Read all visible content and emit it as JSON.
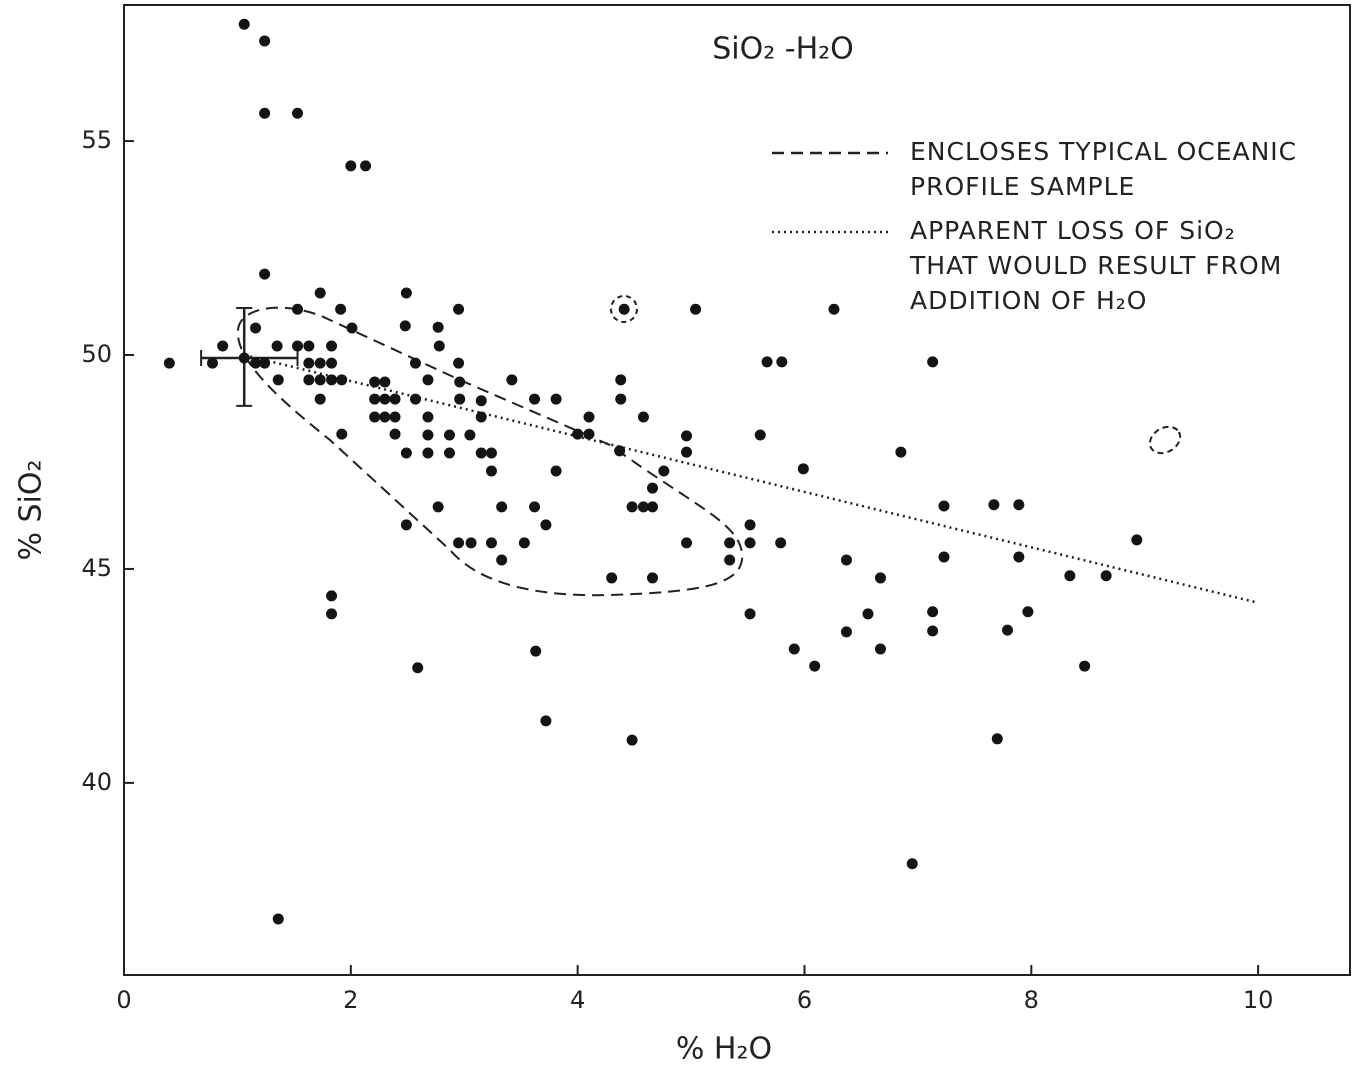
{
  "chart_data": {
    "type": "scatter",
    "title": "SiO₂ -H₂O",
    "x_label": "% H₂O",
    "y_label": "% SiO₂",
    "color": "#141414",
    "x": [
      1.06,
      1.24,
      1.24,
      1.53,
      2.0,
      2.13,
      1.24,
      1.73,
      2.49,
      1.53,
      1.91,
      2.95,
      4.41,
      5.04,
      6.26,
      1.16,
      2.01,
      2.48,
      2.77,
      0.87,
      1.35,
      1.53,
      1.63,
      1.83,
      2.78,
      0.4,
      0.78,
      1.06,
      1.16,
      1.24,
      1.63,
      1.73,
      1.83,
      2.57,
      2.95,
      5.67,
      5.8,
      7.13,
      1.63,
      1.73,
      1.83,
      1.92,
      1.36,
      2.21,
      2.3,
      2.68,
      2.96,
      3.42,
      4.38,
      1.73,
      2.21,
      2.3,
      2.39,
      2.57,
      2.96,
      3.15,
      3.62,
      3.81,
      4.38,
      2.21,
      2.3,
      2.39,
      2.68,
      3.15,
      4.1,
      4.58,
      1.92,
      2.39,
      2.68,
      2.87,
      3.05,
      4.0,
      4.1,
      4.96,
      5.61,
      2.49,
      2.68,
      2.87,
      3.15,
      3.24,
      4.37,
      4.96,
      6.85,
      3.24,
      3.81,
      4.76,
      4.66,
      5.99,
      2.77,
      3.33,
      3.62,
      4.48,
      4.58,
      4.66,
      7.67,
      7.89,
      7.23,
      2.49,
      5.52,
      2.95,
      3.06,
      3.24,
      3.53,
      3.72,
      4.96,
      5.34,
      5.52,
      5.79,
      8.93,
      3.33,
      5.34,
      6.37,
      7.23,
      7.89,
      4.3,
      4.66,
      6.67,
      8.34,
      8.66,
      1.83,
      1.83,
      5.52,
      6.56,
      7.97,
      6.37,
      7.13,
      7.79,
      3.63,
      5.91,
      6.67,
      2.59,
      6.09,
      8.47,
      3.72,
      4.48,
      7.7,
      6.95,
      1.36,
      7.13
    ],
    "values": [
      57.73,
      57.34,
      55.65,
      55.65,
      54.42,
      54.42,
      51.89,
      51.45,
      51.45,
      51.07,
      51.07,
      51.07,
      51.07,
      51.07,
      51.07,
      50.63,
      50.63,
      50.68,
      50.65,
      50.21,
      50.21,
      50.21,
      50.21,
      50.21,
      50.21,
      49.81,
      49.81,
      49.93,
      49.81,
      49.81,
      49.81,
      49.81,
      49.81,
      49.81,
      49.81,
      49.84,
      49.84,
      49.84,
      49.42,
      49.42,
      49.42,
      49.42,
      49.42,
      49.37,
      49.37,
      49.42,
      49.37,
      49.42,
      49.42,
      48.97,
      48.97,
      48.97,
      48.97,
      48.97,
      48.97,
      48.93,
      48.97,
      48.97,
      48.97,
      48.55,
      48.55,
      48.55,
      48.55,
      48.55,
      48.55,
      48.55,
      48.15,
      48.15,
      48.13,
      48.13,
      48.13,
      48.15,
      48.15,
      48.11,
      48.13,
      47.71,
      47.71,
      47.71,
      47.71,
      47.71,
      47.76,
      47.73,
      47.73,
      47.29,
      47.29,
      47.29,
      46.89,
      47.34,
      46.45,
      46.45,
      46.45,
      46.45,
      46.45,
      46.45,
      46.5,
      46.5,
      46.47,
      46.03,
      46.03,
      45.61,
      45.61,
      45.61,
      45.61,
      46.03,
      45.61,
      45.61,
      45.61,
      45.61,
      45.68,
      45.21,
      45.21,
      45.21,
      45.28,
      45.28,
      44.79,
      44.79,
      44.79,
      44.84,
      44.84,
      44.37,
      43.95,
      43.95,
      43.95,
      44.0,
      43.53,
      43.55,
      43.57,
      43.08,
      43.13,
      43.13,
      42.69,
      42.73,
      42.73,
      41.45,
      41.0,
      41.03,
      38.11,
      36.82,
      44.0
    ],
    "xlim": [
      0,
      10.81
    ],
    "ylim": [
      35.51,
      58.18
    ],
    "xticks": [
      0,
      2,
      4,
      6,
      8,
      10
    ],
    "yticks": [
      40,
      45,
      50,
      55
    ],
    "loss_line": {
      "x": [
        1.06,
        10
      ],
      "y": [
        50.0,
        44.21
      ]
    },
    "error_bar": {
      "x": 1.06,
      "y": 49.93,
      "x_range": [
        0.68,
        1.53
      ],
      "y_range": [
        48.81,
        51.1
      ]
    },
    "legend": [
      {
        "style": "dashed",
        "lines": [
          "ENCLOSES TYPICAL OCEANIC",
          "PROFILE SAMPLE"
        ]
      },
      {
        "style": "dotted",
        "lines": [
          "APPARENT LOSS OF SiO₂",
          "THAT WOULD RESULT FROM",
          "ADDITION OF H₂O"
        ]
      }
    ]
  }
}
